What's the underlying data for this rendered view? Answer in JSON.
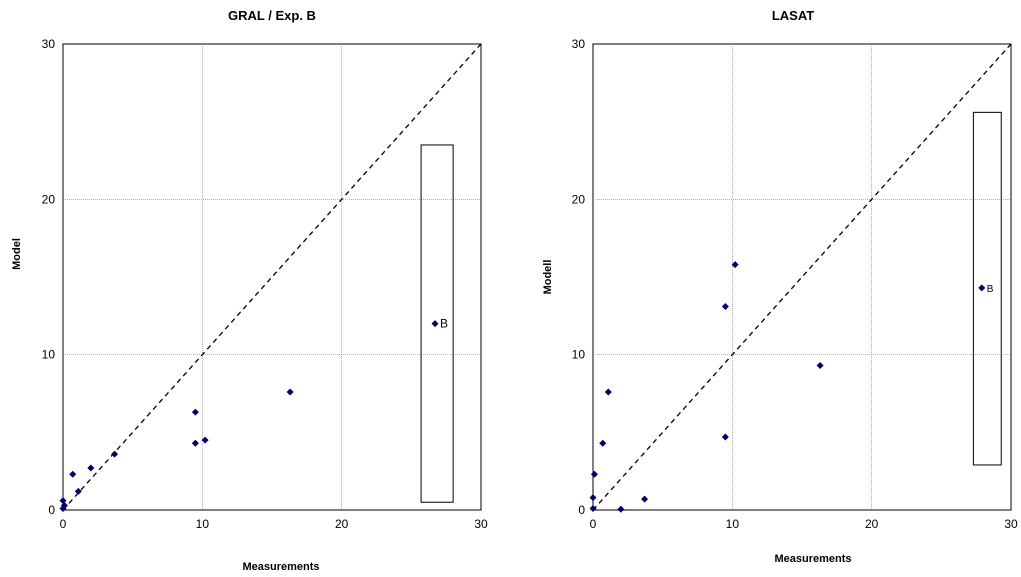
{
  "chart_data": [
    {
      "type": "scatter",
      "title": "GRAL / Exp. B",
      "xlabel": "Measurements",
      "ylabel": "Model",
      "xlim": [
        0,
        30
      ],
      "ylim": [
        0,
        30
      ],
      "xticks": [
        "0",
        "10",
        "20",
        "30"
      ],
      "yticks": [
        "0",
        "10",
        "20",
        "30"
      ],
      "grid": true,
      "diagonal": true,
      "colors": {
        "points": "#000066",
        "grid": "#888888",
        "diagonal": "#000000"
      },
      "points": [
        {
          "x": 0,
          "y": 0.1
        },
        {
          "x": 0.1,
          "y": 0.3
        },
        {
          "x": 0,
          "y": 0.6
        },
        {
          "x": 0.7,
          "y": 2.3
        },
        {
          "x": 1.1,
          "y": 1.2
        },
        {
          "x": 2.0,
          "y": 2.7
        },
        {
          "x": 3.7,
          "y": 3.6
        },
        {
          "x": 9.5,
          "y": 6.3
        },
        {
          "x": 9.5,
          "y": 4.3
        },
        {
          "x": 10.2,
          "y": 4.5
        },
        {
          "x": 16.3,
          "y": 7.6
        }
      ],
      "annotation": {
        "label": "B",
        "x": 26.7,
        "y": 12.0,
        "box_x": [
          25.7,
          28.0
        ],
        "box_y": [
          0.5,
          23.5
        ]
      }
    },
    {
      "type": "scatter",
      "title": "LASAT",
      "xlabel": "Measurements",
      "ylabel": "Modell",
      "xlim": [
        0,
        30
      ],
      "ylim": [
        0,
        30
      ],
      "xticks": [
        "0",
        "10",
        "20",
        "30"
      ],
      "yticks": [
        "0",
        "10",
        "20",
        "30"
      ],
      "grid": true,
      "diagonal": true,
      "colors": {
        "points": "#000066",
        "grid": "#888888",
        "diagonal": "#000000"
      },
      "points": [
        {
          "x": 0,
          "y": 0.1
        },
        {
          "x": 0,
          "y": 0.8
        },
        {
          "x": 0.1,
          "y": 2.3
        },
        {
          "x": 0.7,
          "y": 4.3
        },
        {
          "x": 1.1,
          "y": 7.6
        },
        {
          "x": 2.0,
          "y": 0.05
        },
        {
          "x": 3.7,
          "y": 0.7
        },
        {
          "x": 9.5,
          "y": 13.1
        },
        {
          "x": 10.2,
          "y": 15.8
        },
        {
          "x": 9.5,
          "y": 4.7
        },
        {
          "x": 16.3,
          "y": 9.3
        }
      ],
      "annotation": {
        "label": "B",
        "x": 27.9,
        "y": 14.3,
        "box_x": [
          27.3,
          29.3
        ],
        "box_y": [
          2.9,
          25.6
        ]
      }
    }
  ]
}
